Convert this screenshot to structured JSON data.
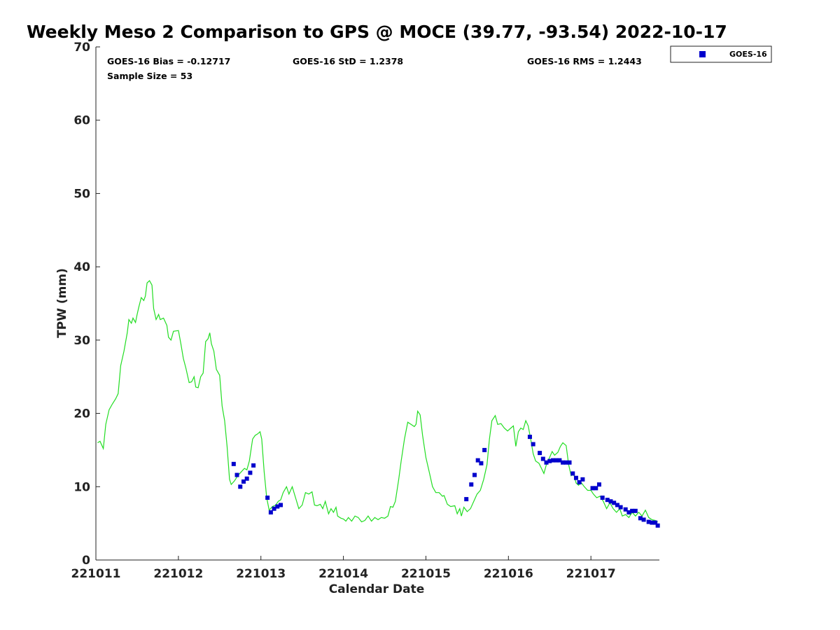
{
  "chart_data": {
    "type": "scatter",
    "title": "Weekly Meso 2 Comparison to GPS @ MOCE (39.77, -93.54) 2022-10-17",
    "xlabel": "Calendar Date",
    "ylabel": "TPW (mm)",
    "xlim": [
      0,
      6.83
    ],
    "ylim": [
      0,
      70
    ],
    "x_ticks": [
      0,
      1,
      2,
      3,
      4,
      5,
      6
    ],
    "x_tick_labels": [
      "221011",
      "221012",
      "221013",
      "221014",
      "221015",
      "221016",
      "221017"
    ],
    "y_ticks": [
      0,
      10,
      20,
      30,
      40,
      50,
      60,
      70
    ],
    "y_tick_labels": [
      "0",
      "10",
      "20",
      "30",
      "40",
      "50",
      "60",
      "70"
    ],
    "stats": {
      "bias": "GOES-16 Bias = -0.12717",
      "std": "GOES-16 StD = 1.2378",
      "rms": "GOES-16 RMS = 1.2443",
      "sample": "Sample Size = 53"
    },
    "legend": [
      {
        "name": "GOES-16",
        "color": "#0000cc",
        "marker": "square"
      }
    ],
    "gps_series": {
      "name": "GPS",
      "color": "#22dd22",
      "points": [
        [
          0.02,
          16.0
        ],
        [
          0.05,
          16.2
        ],
        [
          0.09,
          15.2
        ],
        [
          0.12,
          18.5
        ],
        [
          0.16,
          20.5
        ],
        [
          0.2,
          21.3
        ],
        [
          0.24,
          22.0
        ],
        [
          0.27,
          22.7
        ],
        [
          0.3,
          26.5
        ],
        [
          0.34,
          28.5
        ],
        [
          0.38,
          31.0
        ],
        [
          0.4,
          32.8
        ],
        [
          0.43,
          32.3
        ],
        [
          0.45,
          33.0
        ],
        [
          0.48,
          32.4
        ],
        [
          0.5,
          33.5
        ],
        [
          0.52,
          34.5
        ],
        [
          0.55,
          35.8
        ],
        [
          0.58,
          35.4
        ],
        [
          0.6,
          36.0
        ],
        [
          0.62,
          37.8
        ],
        [
          0.65,
          38.1
        ],
        [
          0.68,
          37.5
        ],
        [
          0.7,
          34.3
        ],
        [
          0.73,
          32.8
        ],
        [
          0.76,
          33.5
        ],
        [
          0.78,
          32.8
        ],
        [
          0.82,
          33.0
        ],
        [
          0.86,
          32.0
        ],
        [
          0.88,
          30.4
        ],
        [
          0.91,
          30.0
        ],
        [
          0.94,
          31.2
        ],
        [
          1.0,
          31.3
        ],
        [
          1.03,
          29.5
        ],
        [
          1.06,
          27.5
        ],
        [
          1.09,
          26.2
        ],
        [
          1.13,
          24.2
        ],
        [
          1.16,
          24.3
        ],
        [
          1.19,
          25.0
        ],
        [
          1.21,
          23.6
        ],
        [
          1.24,
          23.5
        ],
        [
          1.27,
          25.0
        ],
        [
          1.3,
          25.5
        ],
        [
          1.33,
          29.8
        ],
        [
          1.36,
          30.2
        ],
        [
          1.38,
          31.0
        ],
        [
          1.4,
          29.5
        ],
        [
          1.43,
          28.5
        ],
        [
          1.46,
          26.0
        ],
        [
          1.5,
          25.2
        ],
        [
          1.53,
          21.0
        ],
        [
          1.56,
          19.0
        ],
        [
          1.59,
          15.5
        ],
        [
          1.62,
          11.0
        ],
        [
          1.64,
          10.3
        ],
        [
          1.68,
          10.8
        ],
        [
          1.72,
          11.5
        ],
        [
          1.76,
          12.0
        ],
        [
          1.8,
          12.5
        ],
        [
          1.83,
          12.3
        ],
        [
          1.86,
          13.5
        ],
        [
          1.9,
          16.5
        ],
        [
          1.93,
          17.0
        ],
        [
          1.96,
          17.2
        ],
        [
          1.99,
          17.5
        ],
        [
          2.01,
          16.5
        ],
        [
          2.04,
          12.0
        ],
        [
          2.07,
          8.5
        ],
        [
          2.1,
          6.8
        ],
        [
          2.14,
          7.3
        ],
        [
          2.18,
          7.5
        ],
        [
          2.21,
          8.0
        ],
        [
          2.24,
          8.2
        ],
        [
          2.27,
          9.2
        ],
        [
          2.31,
          10.0
        ],
        [
          2.34,
          9.0
        ],
        [
          2.38,
          10.0
        ],
        [
          2.42,
          8.5
        ],
        [
          2.46,
          7.0
        ],
        [
          2.5,
          7.5
        ],
        [
          2.54,
          9.2
        ],
        [
          2.58,
          9.0
        ],
        [
          2.62,
          9.3
        ],
        [
          2.65,
          7.5
        ],
        [
          2.68,
          7.4
        ],
        [
          2.72,
          7.6
        ],
        [
          2.75,
          7.0
        ],
        [
          2.78,
          8.0
        ],
        [
          2.82,
          6.3
        ],
        [
          2.85,
          7.0
        ],
        [
          2.88,
          6.5
        ],
        [
          2.91,
          7.2
        ],
        [
          2.93,
          6.0
        ],
        [
          2.97,
          5.7
        ],
        [
          3.0,
          5.6
        ],
        [
          3.03,
          5.3
        ],
        [
          3.06,
          5.8
        ],
        [
          3.1,
          5.3
        ],
        [
          3.14,
          6.0
        ],
        [
          3.18,
          5.8
        ],
        [
          3.22,
          5.2
        ],
        [
          3.26,
          5.4
        ],
        [
          3.3,
          6.0
        ],
        [
          3.34,
          5.3
        ],
        [
          3.38,
          5.8
        ],
        [
          3.42,
          5.5
        ],
        [
          3.46,
          5.8
        ],
        [
          3.5,
          5.7
        ],
        [
          3.54,
          6.0
        ],
        [
          3.57,
          7.3
        ],
        [
          3.6,
          7.2
        ],
        [
          3.63,
          8.0
        ],
        [
          3.67,
          11.0
        ],
        [
          3.7,
          13.5
        ],
        [
          3.74,
          16.5
        ],
        [
          3.78,
          18.8
        ],
        [
          3.82,
          18.5
        ],
        [
          3.86,
          18.2
        ],
        [
          3.88,
          18.5
        ],
        [
          3.9,
          20.3
        ],
        [
          3.93,
          19.8
        ],
        [
          3.96,
          17.0
        ],
        [
          4.0,
          14.0
        ],
        [
          4.04,
          12.0
        ],
        [
          4.08,
          10.0
        ],
        [
          4.12,
          9.2
        ],
        [
          4.16,
          9.2
        ],
        [
          4.2,
          8.7
        ],
        [
          4.22,
          8.8
        ],
        [
          4.26,
          7.6
        ],
        [
          4.3,
          7.3
        ],
        [
          4.35,
          7.4
        ],
        [
          4.38,
          6.3
        ],
        [
          4.41,
          7.0
        ],
        [
          4.43,
          6.0
        ],
        [
          4.46,
          7.2
        ],
        [
          4.5,
          6.6
        ],
        [
          4.54,
          7.0
        ],
        [
          4.58,
          8.0
        ],
        [
          4.62,
          9.0
        ],
        [
          4.66,
          9.5
        ],
        [
          4.7,
          11.0
        ],
        [
          4.74,
          13.0
        ],
        [
          4.77,
          16.5
        ],
        [
          4.8,
          19.0
        ],
        [
          4.84,
          19.7
        ],
        [
          4.87,
          18.5
        ],
        [
          4.91,
          18.6
        ],
        [
          4.95,
          18.0
        ],
        [
          4.99,
          17.6
        ],
        [
          5.03,
          18.0
        ],
        [
          5.06,
          18.3
        ],
        [
          5.09,
          15.5
        ],
        [
          5.12,
          17.5
        ],
        [
          5.15,
          18.0
        ],
        [
          5.18,
          17.8
        ],
        [
          5.21,
          19.0
        ],
        [
          5.24,
          18.3
        ],
        [
          5.27,
          16.5
        ],
        [
          5.3,
          14.5
        ],
        [
          5.33,
          13.5
        ],
        [
          5.37,
          13.2
        ],
        [
          5.4,
          12.5
        ],
        [
          5.43,
          11.8
        ],
        [
          5.46,
          13.0
        ],
        [
          5.5,
          14.0
        ],
        [
          5.53,
          14.8
        ],
        [
          5.56,
          14.3
        ],
        [
          5.6,
          14.7
        ],
        [
          5.63,
          15.5
        ],
        [
          5.66,
          16.0
        ],
        [
          5.7,
          15.6
        ],
        [
          5.73,
          13.0
        ],
        [
          5.76,
          11.5
        ],
        [
          5.79,
          11.8
        ],
        [
          5.82,
          10.5
        ],
        [
          5.85,
          10.2
        ],
        [
          5.88,
          10.6
        ],
        [
          5.92,
          10.0
        ],
        [
          5.96,
          9.5
        ],
        [
          6.0,
          9.5
        ],
        [
          6.03,
          9.0
        ],
        [
          6.07,
          8.5
        ],
        [
          6.11,
          8.7
        ],
        [
          6.15,
          8.0
        ],
        [
          6.19,
          7.0
        ],
        [
          6.23,
          7.8
        ],
        [
          6.27,
          7.0
        ],
        [
          6.31,
          6.5
        ],
        [
          6.35,
          7.0
        ],
        [
          6.38,
          6.0
        ],
        [
          6.42,
          6.2
        ],
        [
          6.46,
          5.8
        ],
        [
          6.5,
          6.5
        ],
        [
          6.54,
          6.0
        ],
        [
          6.58,
          6.5
        ],
        [
          6.62,
          6.0
        ],
        [
          6.66,
          6.8
        ],
        [
          6.7,
          5.8
        ],
        [
          6.74,
          5.5
        ],
        [
          6.78,
          5.4
        ],
        [
          6.81,
          5.2
        ]
      ]
    },
    "series": [
      {
        "name": "GOES-16",
        "color": "#0000cc",
        "points": [
          [
            1.67,
            13.1
          ],
          [
            1.71,
            11.6
          ],
          [
            1.75,
            10.0
          ],
          [
            1.79,
            10.7
          ],
          [
            1.83,
            11.1
          ],
          [
            1.87,
            11.9
          ],
          [
            1.91,
            12.9
          ],
          [
            2.08,
            8.5
          ],
          [
            2.12,
            6.5
          ],
          [
            2.16,
            7.0
          ],
          [
            2.2,
            7.3
          ],
          [
            2.24,
            7.5
          ],
          [
            4.49,
            8.3
          ],
          [
            4.55,
            10.3
          ],
          [
            4.59,
            11.6
          ],
          [
            4.63,
            13.6
          ],
          [
            4.67,
            13.2
          ],
          [
            4.71,
            15.0
          ],
          [
            5.26,
            16.8
          ],
          [
            5.3,
            15.8
          ],
          [
            5.38,
            14.6
          ],
          [
            5.42,
            13.8
          ],
          [
            5.46,
            13.3
          ],
          [
            5.5,
            13.5
          ],
          [
            5.54,
            13.6
          ],
          [
            5.58,
            13.6
          ],
          [
            5.62,
            13.6
          ],
          [
            5.66,
            13.3
          ],
          [
            5.7,
            13.3
          ],
          [
            5.74,
            13.3
          ],
          [
            5.78,
            11.8
          ],
          [
            5.82,
            11.2
          ],
          [
            5.86,
            10.6
          ],
          [
            5.9,
            11.0
          ],
          [
            6.02,
            9.8
          ],
          [
            6.06,
            9.8
          ],
          [
            6.1,
            10.3
          ],
          [
            6.14,
            8.5
          ],
          [
            6.2,
            8.2
          ],
          [
            6.24,
            8.0
          ],
          [
            6.28,
            7.8
          ],
          [
            6.32,
            7.5
          ],
          [
            6.36,
            7.2
          ],
          [
            6.42,
            6.9
          ],
          [
            6.46,
            6.5
          ],
          [
            6.5,
            6.7
          ],
          [
            6.54,
            6.7
          ],
          [
            6.6,
            5.7
          ],
          [
            6.64,
            5.5
          ],
          [
            6.7,
            5.2
          ],
          [
            6.74,
            5.1
          ],
          [
            6.78,
            5.1
          ],
          [
            6.81,
            4.7
          ]
        ]
      }
    ]
  }
}
